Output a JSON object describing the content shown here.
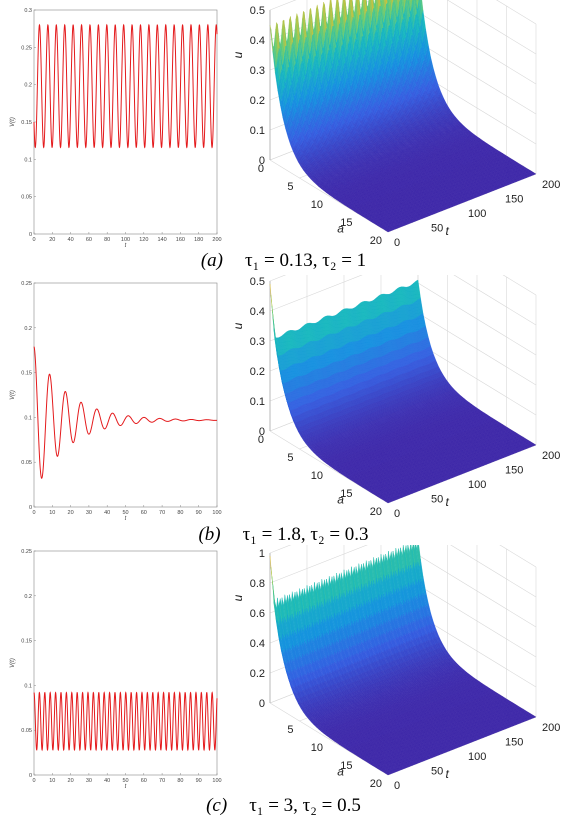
{
  "captions": [
    {
      "label": "(a)",
      "text": "τ₁ = 0.13, τ₂ = 1"
    },
    {
      "label": "(b)",
      "text": "τ₁ = 1.8, τ₂ = 0.3"
    },
    {
      "label": "(c)",
      "text": "τ₁ = 3, τ₂ = 0.5"
    }
  ],
  "colors": {
    "curve": "#e41a1c",
    "surface_low": "#3d26a8",
    "surface_mid": "#18b5c8",
    "surface_high": "#f9d32e"
  },
  "chart_data": [
    {
      "type": "line",
      "panel": "a",
      "xlabel": "t",
      "ylabel": "V(t)",
      "xlim": [
        0,
        200
      ],
      "ylim": [
        0,
        0.3
      ],
      "xticks": [
        "0",
        "20",
        "40",
        "60",
        "80",
        "100",
        "120",
        "140",
        "160",
        "180",
        "200"
      ],
      "yticks": [
        "0",
        "0.05",
        "0.1",
        "0.15",
        "0.2",
        "0.25",
        "0.3"
      ],
      "series": [
        {
          "oscillation": {
            "start": 0.15,
            "center": 0.198,
            "amplitude": 0.082,
            "period": 9.2,
            "decay": 0
          }
        }
      ],
      "grid": false
    },
    {
      "type": "area",
      "panel": "a",
      "xlabel": "t",
      "ylabel": "a",
      "zlabel": "u",
      "xlim": [
        0,
        200
      ],
      "ylim": [
        0,
        20
      ],
      "zlim": [
        0,
        0.5
      ],
      "xticks": [
        "0",
        "50",
        "100",
        "150",
        "200"
      ],
      "yticks": [
        "0",
        "5",
        "10",
        "15",
        "20"
      ],
      "zticks": [
        "0",
        "0.1",
        "0.2",
        "0.3",
        "0.4",
        "0.5"
      ],
      "surface": {
        "peak_base": 0.37,
        "peak_amplitude": 0.08,
        "teeth": 22,
        "growth": 0.12,
        "initial_peak": 0.2
      },
      "grid": true
    },
    {
      "type": "line",
      "panel": "b",
      "xlabel": "t",
      "ylabel": "V(t)",
      "xlim": [
        0,
        100
      ],
      "ylim": [
        0,
        0.25
      ],
      "xticks": [
        "0",
        "10",
        "20",
        "30",
        "40",
        "50",
        "60",
        "70",
        "80",
        "90",
        "100"
      ],
      "yticks": [
        "0",
        "0.05",
        "0.1",
        "0.15",
        "0.2",
        "0.25"
      ],
      "series": [
        {
          "oscillation": {
            "start": 0.2,
            "center": 0.097,
            "amplitude": 0.082,
            "period": 8.6,
            "decay": 0.055
          }
        }
      ],
      "grid": false
    },
    {
      "type": "area",
      "panel": "b",
      "xlabel": "t",
      "ylabel": "a",
      "zlabel": "u",
      "xlim": [
        0,
        200
      ],
      "ylim": [
        0,
        20
      ],
      "zlim": [
        0,
        0.5
      ],
      "xticks": [
        "0",
        "50",
        "100",
        "150",
        "200"
      ],
      "yticks": [
        "0",
        "5",
        "10",
        "15",
        "20"
      ],
      "zticks": [
        "0",
        "0.1",
        "0.2",
        "0.3",
        "0.4",
        "0.5"
      ],
      "surface": {
        "peak_base": 0.3,
        "peak_amplitude": 0.01,
        "teeth": 8,
        "growth": 0.0,
        "initial_peak": 0.49
      },
      "grid": true
    },
    {
      "type": "line",
      "panel": "c",
      "xlabel": "t",
      "ylabel": "V(t)",
      "xlim": [
        0,
        100
      ],
      "ylim": [
        0,
        0.25
      ],
      "xticks": [
        "0",
        "10",
        "20",
        "30",
        "40",
        "50",
        "60",
        "70",
        "80",
        "90",
        "100"
      ],
      "yticks": [
        "0",
        "0.05",
        "0.1",
        "0.15",
        "0.2",
        "0.25"
      ],
      "series": [
        {
          "oscillation": {
            "start": 0.21,
            "center": 0.06,
            "amplitude": 0.032,
            "period": 2.95,
            "decay": 0
          }
        }
      ],
      "grid": false
    },
    {
      "type": "area",
      "panel": "c",
      "xlabel": "t",
      "ylabel": "a",
      "zlabel": "u",
      "xlim": [
        0,
        200
      ],
      "ylim": [
        0,
        20
      ],
      "zlim": [
        0,
        1
      ],
      "xticks": [
        "0",
        "50",
        "100",
        "150",
        "200"
      ],
      "yticks": [
        "5",
        "10",
        "15",
        "20"
      ],
      "zticks": [
        "0",
        "0.2",
        "0.4",
        "0.6",
        "0.8",
        "1"
      ],
      "surface": {
        "peak_base": 0.6,
        "peak_amplitude": 0.08,
        "teeth": 60,
        "growth": 0.12,
        "initial_peak": 0.98
      },
      "grid": true
    }
  ]
}
